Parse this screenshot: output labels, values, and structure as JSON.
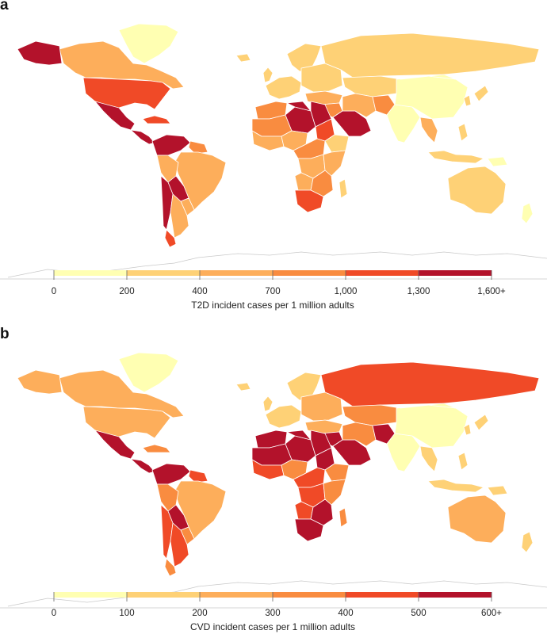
{
  "panels": [
    {
      "letter": "a",
      "legend": {
        "title": "T2D incident cases per 1 million adults",
        "ticks": [
          "0",
          "200",
          "400",
          "700",
          "1,000",
          "1,300",
          "1,600+"
        ],
        "colors": [
          "#ffffb2",
          "#fed176",
          "#fdae5b",
          "#f98c40",
          "#f04a27",
          "#b3122b"
        ]
      },
      "regions": {
        "greenland": 0,
        "canada": 2,
        "alaska": 5,
        "usa": 4,
        "mexico": 5,
        "central_america": 5,
        "caribbean": 4,
        "colombia_venezuela": 5,
        "guianas": 3,
        "brazil": 2,
        "peru": 2,
        "bolivia": 5,
        "paraguay": 2,
        "chile": 5,
        "argentina": 2,
        "patagonia": 4,
        "iceland": 1,
        "uk": 1,
        "western_europe": 1,
        "scandinavia": 1,
        "eastern_europe": 1,
        "russia": 1,
        "central_asia": 1,
        "turkey": 2,
        "middle_east": 3,
        "arabia": 5,
        "iran": 2,
        "afghanistan_pakistan": 3,
        "india": 0,
        "china": 0,
        "mongolia": 0,
        "southeast_asia": 2,
        "japan": 1,
        "korea": 1,
        "indonesia": 1,
        "philippines": 1,
        "png": 0,
        "australia": 1,
        "new_zealand": 0,
        "maghreb": 3,
        "mauritania_mali": 3,
        "niger_chad": 5,
        "libya": 5,
        "egypt": 5,
        "sudan": 4,
        "ethiopia": 1,
        "west_africa": 2,
        "nigeria": 2,
        "central_africa": 3,
        "congo": 2,
        "east_africa": 2,
        "angola": 2,
        "southern_central": 3,
        "south_africa": 4,
        "madagascar": 1
      }
    },
    {
      "letter": "b",
      "legend": {
        "title": "CVD incident cases per 1 million adults",
        "ticks": [
          "0",
          "100",
          "200",
          "300",
          "400",
          "500",
          "600+"
        ],
        "colors": [
          "#ffffb2",
          "#fed176",
          "#fdae5b",
          "#f98c40",
          "#f04a27",
          "#b3122b"
        ]
      },
      "regions": {
        "greenland": 0,
        "canada": 2,
        "alaska": 2,
        "usa": 2,
        "mexico": 5,
        "central_america": 5,
        "caribbean": 3,
        "colombia_venezuela": 5,
        "guianas": 4,
        "brazil": 2,
        "peru": 3,
        "bolivia": 5,
        "paraguay": 3,
        "chile": 4,
        "argentina": 4,
        "patagonia": 3,
        "iceland": 1,
        "uk": 1,
        "western_europe": 1,
        "scandinavia": 1,
        "eastern_europe": 2,
        "russia": 4,
        "central_asia": 3,
        "turkey": 2,
        "middle_east": 5,
        "arabia": 5,
        "iran": 3,
        "afghanistan_pakistan": 5,
        "india": 0,
        "china": 0,
        "mongolia": 0,
        "southeast_asia": 1,
        "japan": 1,
        "korea": 1,
        "indonesia": 1,
        "philippines": 1,
        "png": 1,
        "australia": 2,
        "new_zealand": 1,
        "maghreb": 5,
        "mauritania_mali": 5,
        "niger_chad": 5,
        "libya": 5,
        "egypt": 5,
        "sudan": 5,
        "ethiopia": 3,
        "west_africa": 4,
        "nigeria": 3,
        "central_africa": 4,
        "congo": 4,
        "east_africa": 3,
        "angola": 4,
        "southern_central": 5,
        "south_africa": 5,
        "madagascar": 3
      }
    }
  ]
}
